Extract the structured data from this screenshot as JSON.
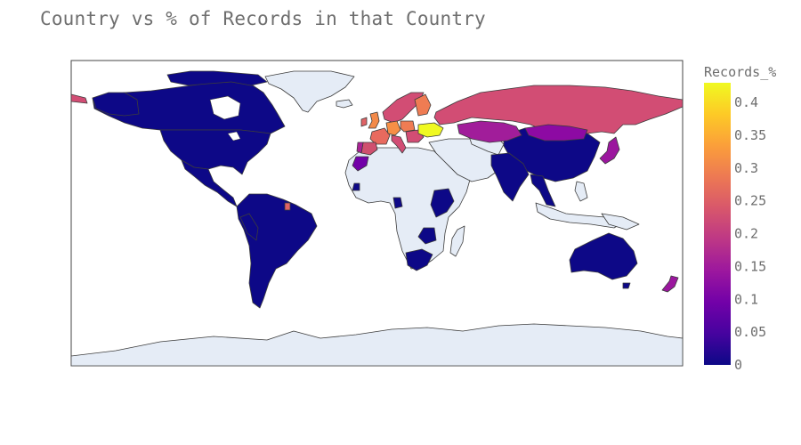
{
  "title": "Country vs % of Records in that Country",
  "colors": {
    "no_data_land": "#e5ecf6",
    "ocean": "#ffffff",
    "border": "#3c3c3c",
    "colorscale": "plasma"
  },
  "chart_data": {
    "type": "choropleth",
    "title": "Country vs % of Records in that Country",
    "projection": "equirectangular",
    "colorbar": {
      "title": "Records_%",
      "min": 0,
      "max": 0.43,
      "ticks": [
        "0",
        "0.05",
        "0.1",
        "0.15",
        "0.2",
        "0.25",
        "0.3",
        "0.35",
        "0.4"
      ]
    },
    "countries": [
      {
        "name": "Ukraine",
        "value": 0.43
      },
      {
        "name": "Germany",
        "value": 0.31
      },
      {
        "name": "United Kingdom",
        "value": 0.3
      },
      {
        "name": "Finland",
        "value": 0.27
      },
      {
        "name": "Poland",
        "value": 0.27
      },
      {
        "name": "France",
        "value": 0.26
      },
      {
        "name": "Russia",
        "value": 0.21
      },
      {
        "name": "Norway",
        "value": 0.21
      },
      {
        "name": "Sweden",
        "value": 0.21
      },
      {
        "name": "Italy",
        "value": 0.21
      },
      {
        "name": "Spain",
        "value": 0.2
      },
      {
        "name": "Ireland",
        "value": 0.22
      },
      {
        "name": "Portugal",
        "value": 0.17
      },
      {
        "name": "Kazakhstan",
        "value": 0.15
      },
      {
        "name": "Mongolia",
        "value": 0.13
      },
      {
        "name": "Morocco",
        "value": 0.09
      },
      {
        "name": "Japan",
        "value": 0.12
      },
      {
        "name": "New Zealand",
        "value": 0.12
      },
      {
        "name": "French Guiana",
        "value": 0.22
      },
      {
        "name": "Canada",
        "value": 0.02
      },
      {
        "name": "United States",
        "value": 0.02
      },
      {
        "name": "Mexico",
        "value": 0.01
      },
      {
        "name": "Colombia",
        "value": 0.01
      },
      {
        "name": "Venezuela",
        "value": 0.01
      },
      {
        "name": "Brazil",
        "value": 0.01
      },
      {
        "name": "Peru",
        "value": 0.01
      },
      {
        "name": "Chile",
        "value": 0.01
      },
      {
        "name": "Argentina",
        "value": 0.01
      },
      {
        "name": "China",
        "value": 0.01
      },
      {
        "name": "India",
        "value": 0.01
      },
      {
        "name": "Australia",
        "value": 0.01
      },
      {
        "name": "Ethiopia",
        "value": 0.01
      },
      {
        "name": "Kenya",
        "value": 0.01
      },
      {
        "name": "South Africa",
        "value": 0.01
      },
      {
        "name": "Thailand",
        "value": 0.01
      },
      {
        "name": "Vietnam",
        "value": 0.01
      },
      {
        "name": "Zimbabwe",
        "value": 0.01
      },
      {
        "name": "Guinea",
        "value": 0.01
      },
      {
        "name": "Cameroon",
        "value": 0.01
      }
    ]
  }
}
